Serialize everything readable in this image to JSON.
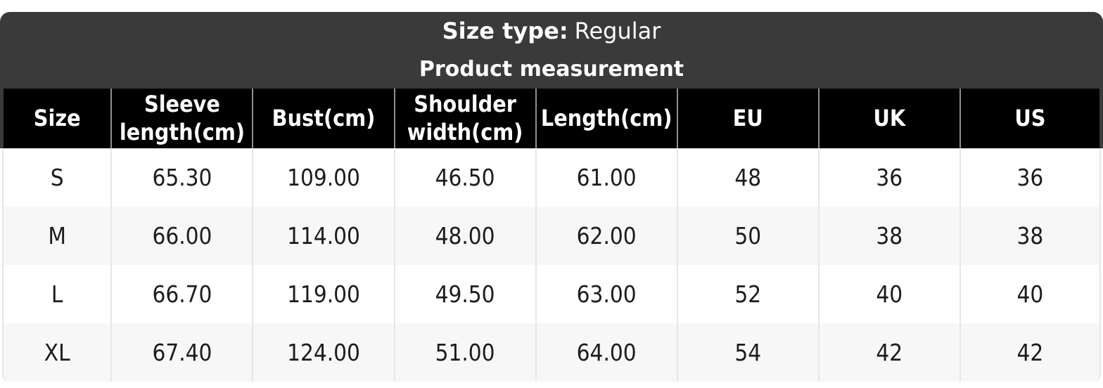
{
  "size_chart": {
    "size_type_label": "Size type:",
    "size_type_value": "Regular",
    "subtitle": "Product measurement",
    "columns": [
      "Size",
      "Sleeve length(cm)",
      "Bust(cm)",
      "Shoulder width(cm)",
      "Length(cm)",
      "EU",
      "UK",
      "US"
    ],
    "rows": [
      [
        "S",
        "65.30",
        "109.00",
        "46.50",
        "61.00",
        "48",
        "36",
        "36"
      ],
      [
        "M",
        "66.00",
        "114.00",
        "48.00",
        "62.00",
        "50",
        "38",
        "38"
      ],
      [
        "L",
        "66.70",
        "119.00",
        "49.50",
        "63.00",
        "52",
        "40",
        "40"
      ],
      [
        "XL",
        "67.40",
        "124.00",
        "51.00",
        "64.00",
        "54",
        "42",
        "42"
      ]
    ],
    "colors": {
      "title_band_bg": "#3a3a3a",
      "header_row_bg": "#000000",
      "alt_row_bg": "#f7f7f7",
      "header_divider": "#8f8f8f",
      "body_divider": "#e7e7e7"
    }
  }
}
